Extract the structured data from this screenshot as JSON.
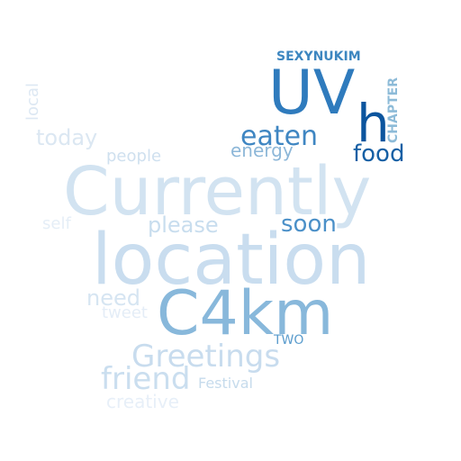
{
  "words": [
    {
      "text": "SEXYNUKIM",
      "color": "#3d86c0"
    },
    {
      "text": "UV",
      "color": "#2f7bbd"
    },
    {
      "text": "h",
      "color": "#0c559e"
    },
    {
      "text": "CHAPTER",
      "color": "#8dbbd8"
    },
    {
      "text": "local",
      "color": "#dde8f3"
    },
    {
      "text": "today",
      "color": "#dbe7f2"
    },
    {
      "text": "eaten",
      "color": "#3f86c2"
    },
    {
      "text": "energy",
      "color": "#8db7d8"
    },
    {
      "text": "food",
      "color": "#155fa4"
    },
    {
      "text": "people",
      "color": "#cfe0ef"
    },
    {
      "text": "Currently",
      "color": "#d2e3f1"
    },
    {
      "text": "self",
      "color": "#e5eef7"
    },
    {
      "text": "please",
      "color": "#c8ddee"
    },
    {
      "text": "soon",
      "color": "#4b90c8"
    },
    {
      "text": "location",
      "color": "#c9ddef"
    },
    {
      "text": "need",
      "color": "#d6e5f2"
    },
    {
      "text": "tweet",
      "color": "#e4edf7"
    },
    {
      "text": "C4km",
      "color": "#88b8db"
    },
    {
      "text": "TWO",
      "color": "#5a9ccd"
    },
    {
      "text": "Greetings",
      "color": "#c8dcee"
    },
    {
      "text": "friend",
      "color": "#cadeef"
    },
    {
      "text": "Festival",
      "color": "#c6dbec"
    },
    {
      "text": "creative",
      "color": "#e7eff8"
    }
  ]
}
